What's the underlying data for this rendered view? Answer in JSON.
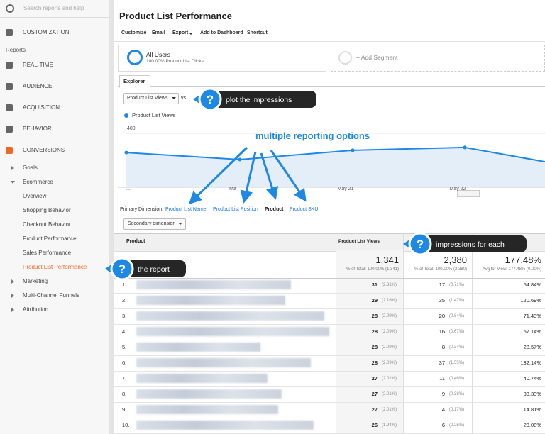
{
  "sidebar": {
    "search": "Search reports and help",
    "items": [
      "CUSTOMIZATION",
      "Reports",
      "REAL-TIME",
      "AUDIENCE",
      "ACQUISITION",
      "BEHAVIOR",
      "CONVERSIONS",
      "Goals",
      "Ecommerce",
      "Overview",
      "Shopping Behavior",
      "Checkout Behavior",
      "Product Performance",
      "Sales Performance",
      "Product List Performance",
      "Marketing",
      "Multi-Channel Funnels",
      "Attribution"
    ]
  },
  "header": {
    "title": "Product List Performance",
    "actions": [
      "Customize",
      "Email",
      "Export",
      "Add to Dashboard",
      "Shortcut"
    ]
  },
  "segments": {
    "active": {
      "name": "All Users",
      "detail": "100.00% Product List Clicks"
    },
    "add": "+ Add Segment"
  },
  "explorer": {
    "tab": "Explorer",
    "metric": "Product List Views",
    "vs": "vs"
  },
  "chart": {
    "legend": "Product List Views",
    "categories": [
      "...",
      "Ma",
      "May 21",
      "May 22",
      null
    ],
    "values": [
      233,
      186,
      248,
      267,
      171
    ],
    "ylim": [
      0,
      400
    ],
    "yticks": [
      400,
      200
    ]
  },
  "dimensions": {
    "label": "Primary Dimension:",
    "options": [
      "Product List Name",
      "Product List Position",
      "Product",
      "Product SKU"
    ],
    "secondary": "Secondary dimension"
  },
  "table": {
    "headers": [
      "Product",
      "Product List Views"
    ],
    "totals": [
      [
        "1,341",
        "% of Total: 100.00% (1,341)"
      ],
      [
        "2,380",
        "% of Total: 100.00% (2,380)"
      ],
      [
        "177.48%",
        "Avg for View: 177.48% (0.00%)"
      ]
    ],
    "rows": [
      [
        "1.",
        "31",
        "(2.31%)",
        "17",
        "(0.71%)",
        "54.84%"
      ],
      [
        "2.",
        "29",
        "(2.16%)",
        "35",
        "(1.47%)",
        "120.69%"
      ],
      [
        "3.",
        "28",
        "(2.09%)",
        "20",
        "(0.84%)",
        "71.43%"
      ],
      [
        "4.",
        "28",
        "(2.09%)",
        "16",
        "(0.67%)",
        "57.14%"
      ],
      [
        "5.",
        "28",
        "(2.09%)",
        "8",
        "(0.34%)",
        "28.57%"
      ],
      [
        "6.",
        "28",
        "(2.09%)",
        "37",
        "(1.55%)",
        "132.14%"
      ],
      [
        "7.",
        "27",
        "(2.01%)",
        "11",
        "(0.46%)",
        "40.74%"
      ],
      [
        "8.",
        "27",
        "(2.01%)",
        "9",
        "(0.38%)",
        "33.33%"
      ],
      [
        "9.",
        "27",
        "(2.01%)",
        "4",
        "(0.17%)",
        "14.81%"
      ],
      [
        "10.",
        "26",
        "(1.94%)",
        "6",
        "(0.25%)",
        "23.08%"
      ]
    ]
  },
  "annotations": {
    "plot": "plot the impressions",
    "options": "multiple reporting options",
    "each": "impressions for each",
    "report": "the report",
    "help": "?"
  }
}
